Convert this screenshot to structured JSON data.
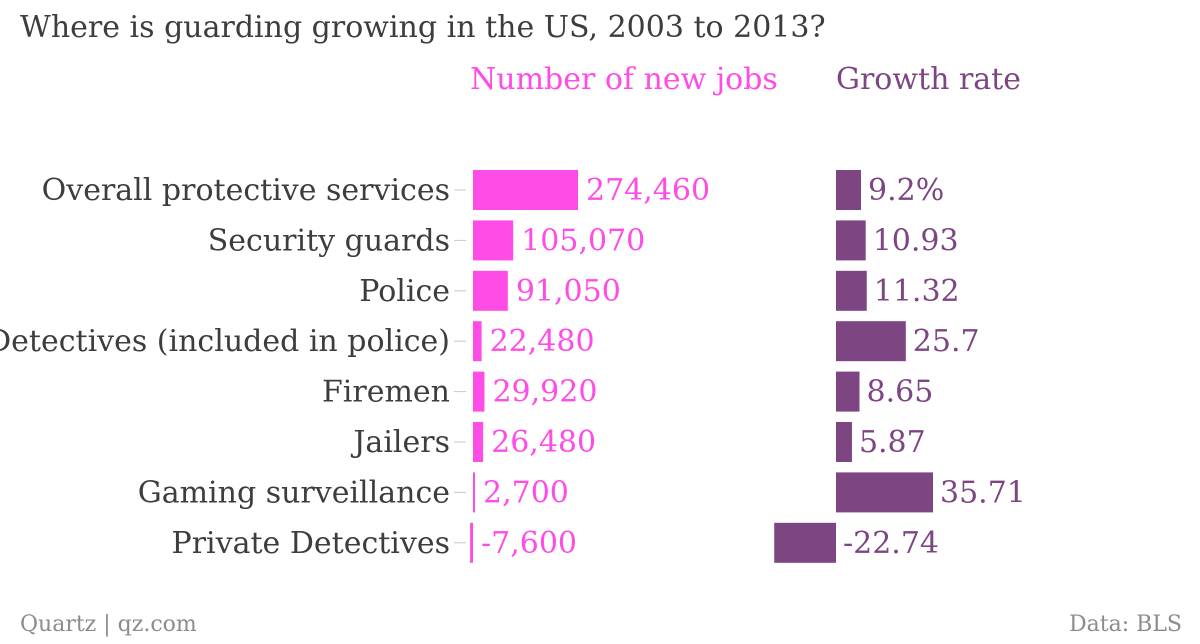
{
  "title": "Where is guarding growing in the US, 2003 to 2013?",
  "columns": {
    "jobs": "Number of new jobs",
    "rate": "Growth rate"
  },
  "footer": {
    "source": "Quartz | qz.com",
    "data": "Data: BLS"
  },
  "colors": {
    "jobs": "#ff4ce6",
    "rate": "#7d4682",
    "category_text": "#3d3d3d",
    "footer_text": "#8c8c8c"
  },
  "chart_data": {
    "type": "bar",
    "orientation": "horizontal",
    "title": "Where is guarding growing in the US, 2003 to 2013?",
    "categories": [
      "Overall protective services",
      "Security guards",
      "Police",
      "Detectives (included in police)",
      "Firemen",
      "Jailers",
      "Gaming surveillance",
      "Private Detectives"
    ],
    "series": [
      {
        "name": "Number of new jobs",
        "values": [
          274460,
          105070,
          91050,
          22480,
          29920,
          26480,
          2700,
          -7600
        ],
        "labels": [
          "274,460",
          "105,070",
          "91,050",
          "22,480",
          "29,920",
          "26,480",
          "2,700",
          "-7,600"
        ]
      },
      {
        "name": "Growth rate",
        "values": [
          9.2,
          10.93,
          11.32,
          25.7,
          8.65,
          5.87,
          35.71,
          -22.74
        ],
        "labels": [
          "9.2%",
          "10.93",
          "11.32",
          "25.7",
          "8.65",
          "5.87",
          "35.71",
          "-22.74"
        ]
      }
    ],
    "grid": false,
    "legend": "column headers"
  }
}
